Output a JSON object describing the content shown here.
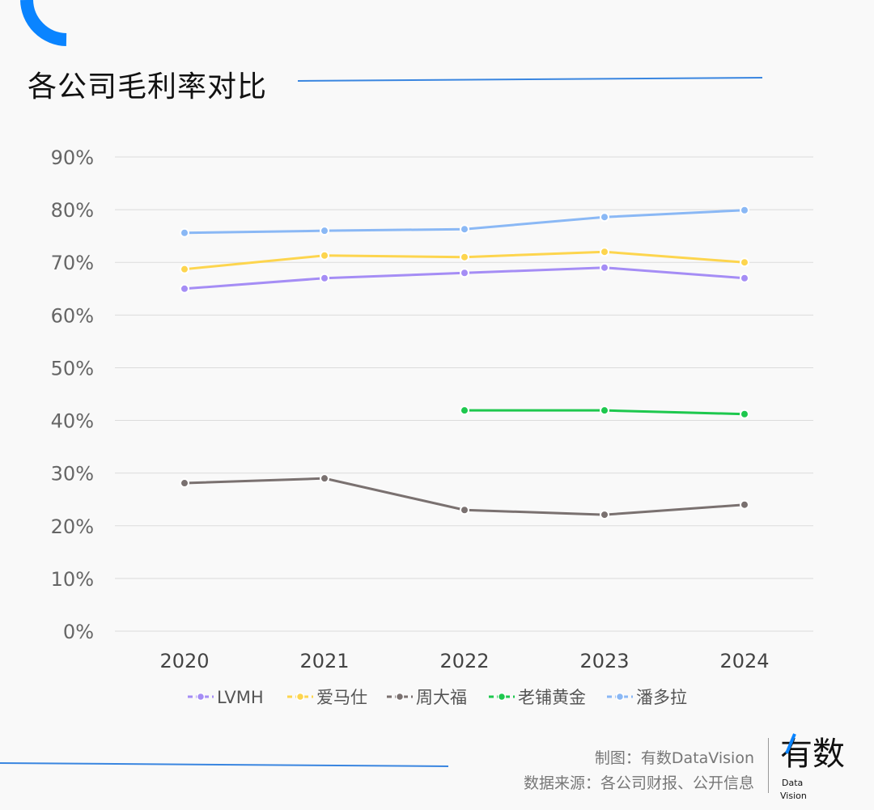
{
  "title": "各公司毛利率对比",
  "footer": {
    "credit": "制图：有数DataVision",
    "source": "数据来源：各公司财报、公开信息",
    "logo_text": "有数",
    "logo_sub1": "Data",
    "logo_sub2": "Vision"
  },
  "colors": {
    "accent": "#0a84ff"
  },
  "chart_data": {
    "type": "line",
    "title": "各公司毛利率对比",
    "xlabel": "",
    "ylabel": "",
    "categories": [
      "2020",
      "2021",
      "2022",
      "2023",
      "2024"
    ],
    "ylim": [
      0,
      90
    ],
    "yticks": [
      0,
      10,
      20,
      30,
      40,
      50,
      60,
      70,
      80,
      90
    ],
    "ytick_labels": [
      "0%",
      "10%",
      "20%",
      "30%",
      "40%",
      "50%",
      "60%",
      "70%",
      "80%",
      "90%"
    ],
    "grid": true,
    "legend": "bottom",
    "series": [
      {
        "name": "LVMH",
        "color": "#a58df5",
        "values": [
          65,
          67,
          68,
          69,
          67
        ]
      },
      {
        "name": "爱马仕",
        "color": "#fdd54e",
        "values": [
          68.7,
          71.3,
          71,
          72,
          70
        ]
      },
      {
        "name": "周大福",
        "color": "#7a7170",
        "values": [
          28.1,
          29,
          23,
          22.1,
          24
        ]
      },
      {
        "name": "老铺黄金",
        "color": "#1ec84e",
        "values": [
          null,
          null,
          41.9,
          41.9,
          41.2
        ]
      },
      {
        "name": "潘多拉",
        "color": "#8ab8f5",
        "values": [
          75.6,
          76,
          76.3,
          78.6,
          79.9
        ]
      }
    ]
  }
}
